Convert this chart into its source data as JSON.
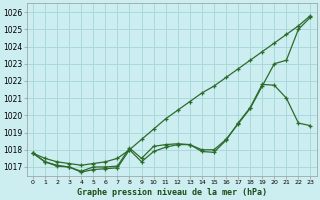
{
  "title": "Graphe pression niveau de la mer (hPa)",
  "bg_color": "#cceef0",
  "grid_color": "#aad8da",
  "line_color": "#2d6b2d",
  "x_labels": [
    "0",
    "1",
    "2",
    "3",
    "4",
    "5",
    "6",
    "7",
    "8",
    "9",
    "10",
    "11",
    "12",
    "13",
    "14",
    "15",
    "16",
    "17",
    "18",
    "19",
    "20",
    "21",
    "22",
    "23"
  ],
  "ylim": [
    1016.5,
    1026.5
  ],
  "yticks": [
    1017,
    1018,
    1019,
    1020,
    1021,
    1022,
    1023,
    1024,
    1025,
    1026
  ],
  "line_smooth": [
    1017.8,
    1017.5,
    1017.3,
    1017.2,
    1017.1,
    1017.2,
    1017.3,
    1017.5,
    1018.0,
    1018.6,
    1019.2,
    1019.8,
    1020.3,
    1020.8,
    1021.3,
    1021.7,
    1022.2,
    1022.7,
    1023.2,
    1023.7,
    1024.2,
    1024.7,
    1025.2,
    1025.8
  ],
  "line_mid": [
    1017.8,
    1017.3,
    1017.1,
    1017.0,
    1016.75,
    1017.0,
    1017.0,
    1017.05,
    1018.1,
    1017.5,
    1018.2,
    1018.3,
    1018.35,
    1018.3,
    1018.0,
    1018.0,
    1018.6,
    1019.5,
    1020.4,
    1021.7,
    1023.0,
    1023.2,
    1025.0,
    1025.7
  ],
  "line_low": [
    1017.8,
    1017.3,
    1017.05,
    1017.0,
    1016.7,
    1016.85,
    1016.9,
    1016.95,
    1018.0,
    1017.3,
    1017.9,
    1018.15,
    1018.3,
    1018.3,
    1017.9,
    1017.85,
    1018.55,
    1019.55,
    1020.45,
    1021.8,
    1021.75,
    1021.0,
    1019.55,
    1019.4
  ]
}
